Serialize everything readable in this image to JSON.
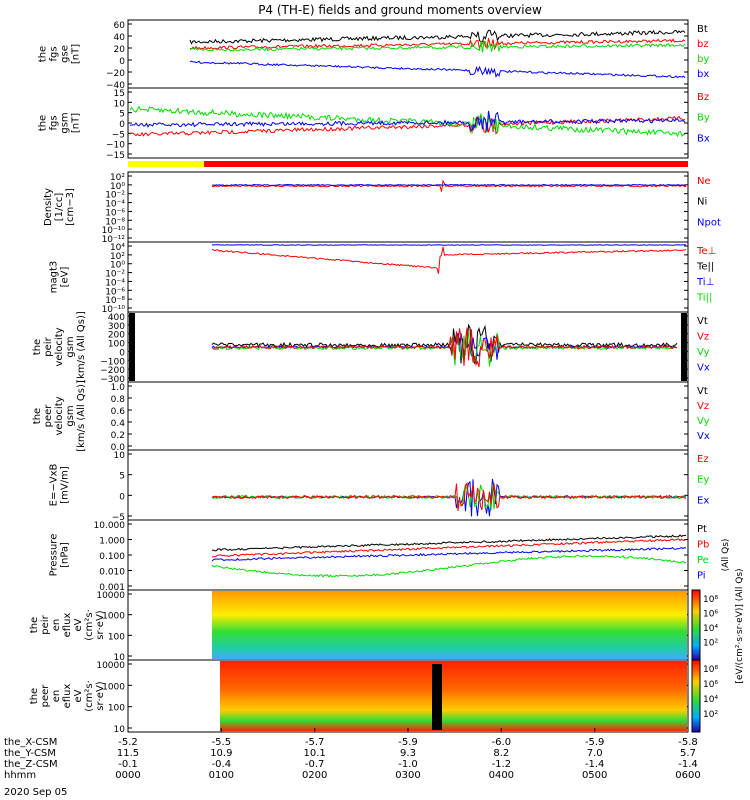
{
  "title": "P4 (TH-E) fields and ground moments overview",
  "date": "2020 Sep 05",
  "colors": {
    "black": "#000000",
    "red": "#ff0000",
    "green": "#00dd00",
    "blue": "#0000ff",
    "yellow": "#ffff00"
  },
  "time_axis": {
    "ticks": [
      "0000",
      "0100",
      "0200",
      "0300",
      "0400",
      "0500",
      "0600"
    ]
  },
  "ephemeris": {
    "labels": [
      "the_X-CSM",
      "the_Y-CSM",
      "the_Z-CSM",
      "hhmm"
    ],
    "rows": [
      [
        "-5.2",
        "-5.5",
        "-5.7",
        "-5.9",
        "-6.0",
        "-5.9",
        "-5.8"
      ],
      [
        "11.5",
        "10.9",
        "10.1",
        "9.3",
        "8.2",
        "7.0",
        "5.7"
      ],
      [
        "-0.1",
        "-0.4",
        "-0.7",
        "-1.0",
        "-1.2",
        "-1.4",
        "-1.4"
      ]
    ]
  },
  "panels": [
    {
      "ylabel": [
        "the",
        "fgs",
        "gse",
        "[nT]"
      ],
      "ticks": [
        "60",
        "40",
        "20",
        "0",
        "−20",
        "−40"
      ],
      "legend": [
        "Bt",
        "bz",
        "by",
        "bx"
      ],
      "legend_colors": [
        "#000000",
        "#ff0000",
        "#00dd00",
        "#0000ff"
      ]
    },
    {
      "ylabel": [
        "the",
        "fgs",
        "gsm",
        "[nT]"
      ],
      "ticks": [
        "15",
        "10",
        "5",
        "0",
        "−5",
        "−10",
        "−15"
      ],
      "legend": [
        "Bz",
        "By",
        "Bx"
      ],
      "legend_colors": [
        "#ff0000",
        "#00dd00",
        "#0000ff"
      ]
    },
    {
      "ylabel": [
        "Density",
        "[1/cc]",
        "[cm−3]"
      ],
      "ticks": [
        "10²",
        "10⁰",
        "10⁻²",
        "10⁻⁴",
        "10⁻⁶",
        "10⁻⁸",
        "10⁻¹⁰",
        "10⁻¹²"
      ],
      "legend": [
        "Ne",
        "Ni",
        "Npot"
      ],
      "legend_colors": [
        "#ff0000",
        "#000000",
        "#0000ff"
      ]
    },
    {
      "ylabel": [
        "magt3",
        "[eV]"
      ],
      "ticks": [
        "10⁴",
        "10²",
        "10⁰",
        "10⁻²",
        "10⁻⁴",
        "10⁻⁶",
        "10⁻⁸",
        "10⁻¹⁰"
      ],
      "legend": [
        "Te⊥",
        "Te||",
        "Ti⊥",
        "Ti||"
      ],
      "legend_colors": [
        "#ff0000",
        "#000000",
        "#0000ff",
        "#00dd00"
      ]
    },
    {
      "ylabel": [
        "the",
        "peir",
        "velocity",
        "gsm",
        "[km/s (All Qs)]"
      ],
      "ticks": [
        "400",
        "300",
        "200",
        "100",
        "0",
        "−100",
        "−200",
        "−300"
      ],
      "legend": [
        "Vt",
        "Vz",
        "Vy",
        "Vx"
      ],
      "legend_colors": [
        "#000000",
        "#ff0000",
        "#00dd00",
        "#0000ff"
      ]
    },
    {
      "ylabel": [
        "the",
        "peer",
        "velocity",
        "gsm",
        "[km/s (All Qs)]"
      ],
      "ticks": [
        "1.0",
        "0.8",
        "0.6",
        "0.4",
        "0.2",
        "0.0"
      ],
      "legend": [
        "Vt",
        "Vz",
        "Vy",
        "Vx"
      ],
      "legend_colors": [
        "#000000",
        "#ff0000",
        "#00dd00",
        "#0000ff"
      ]
    },
    {
      "ylabel": [
        "E=−VxB",
        "[mV/m]"
      ],
      "ticks": [
        "10",
        "5",
        "0",
        "−5"
      ],
      "legend": [
        "Ez",
        "Ey",
        "Ex"
      ],
      "legend_colors": [
        "#ff0000",
        "#00dd00",
        "#0000ff"
      ]
    },
    {
      "ylabel": [
        "Pressure",
        "[nPa]"
      ],
      "ticks": [
        "10.000",
        "1.000",
        "0.100",
        "0.010",
        "0.001"
      ],
      "legend": [
        "Pt",
        "Pb",
        "Pe",
        "Pi"
      ],
      "legend_colors": [
        "#000000",
        "#ff0000",
        "#00dd00",
        "#0000ff"
      ],
      "right_note": "(All Qs)"
    },
    {
      "ylabel": [
        "the",
        "peir",
        "en",
        "eflux",
        "eV",
        "(cm²s·",
        "sr·eV)"
      ],
      "ticks": [
        "10000",
        "1000",
        "100",
        "10"
      ],
      "colorbar": [
        "10⁸",
        "10⁶",
        "10⁴",
        "10²"
      ]
    },
    {
      "ylabel": [
        "the",
        "peer",
        "en",
        "eflux",
        "eV",
        "(cm²s·",
        "sr·eV)"
      ],
      "ticks": [
        "10000",
        "1000",
        "100",
        "10"
      ],
      "colorbar": [
        "10⁸",
        "10⁶",
        "10⁴",
        "10²"
      ],
      "colorbar_unit": "[eV/(cm²·s·sr·eV)]  (All Qs)"
    }
  ]
}
